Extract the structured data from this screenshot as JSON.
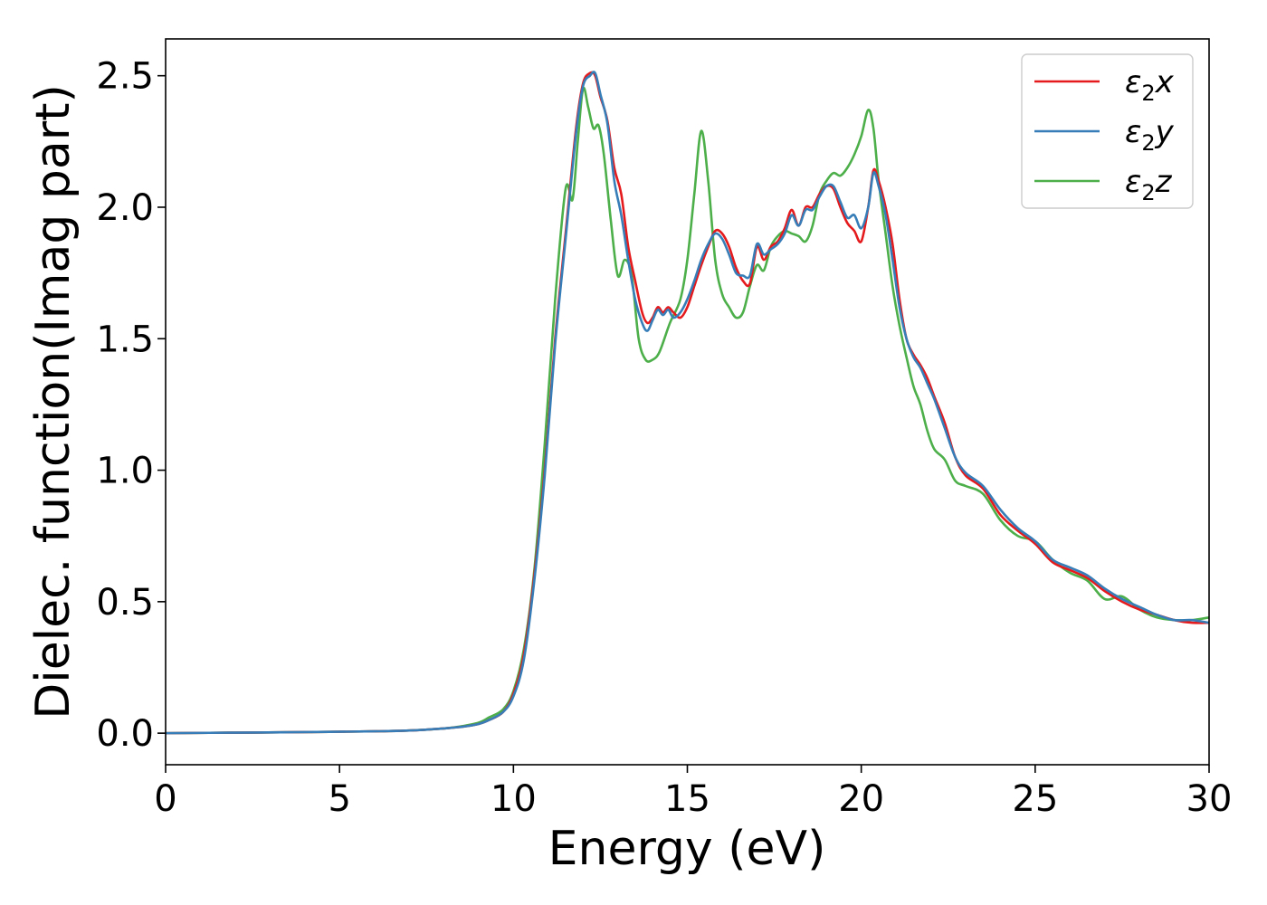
{
  "chart_data": {
    "type": "line",
    "xlabel": "Energy (eV)",
    "ylabel": "Dielec. function(Imag part)",
    "xlim": [
      0,
      30
    ],
    "ylim": [
      -0.12,
      2.64
    ],
    "xticks": [
      0,
      5,
      10,
      15,
      20,
      25,
      30
    ],
    "xtick_labels": [
      "0",
      "5",
      "10",
      "15",
      "20",
      "25",
      "30"
    ],
    "yticks": [
      0.0,
      0.5,
      1.0,
      1.5,
      2.0,
      2.5
    ],
    "ytick_labels": [
      "0.0",
      "0.5",
      "1.0",
      "1.5",
      "2.0",
      "2.5"
    ],
    "grid": false,
    "legend_position": "top-right",
    "series": [
      {
        "name": "ε2x",
        "legend": {
          "base": "ε",
          "sub": "2",
          "var": "x"
        },
        "color": "#e41a1c",
        "points": [
          [
            0,
            0
          ],
          [
            2,
            0.002
          ],
          [
            4,
            0.004
          ],
          [
            6,
            0.007
          ],
          [
            7,
            0.01
          ],
          [
            8,
            0.018
          ],
          [
            8.5,
            0.024
          ],
          [
            9,
            0.035
          ],
          [
            9.3,
            0.05
          ],
          [
            9.7,
            0.08
          ],
          [
            10,
            0.15
          ],
          [
            10.3,
            0.3
          ],
          [
            10.6,
            0.6
          ],
          [
            10.9,
            1.0
          ],
          [
            11.2,
            1.5
          ],
          [
            11.5,
            1.9
          ],
          [
            11.8,
            2.3
          ],
          [
            12.0,
            2.47
          ],
          [
            12.2,
            2.51
          ],
          [
            12.35,
            2.5
          ],
          [
            12.5,
            2.42
          ],
          [
            12.7,
            2.33
          ],
          [
            12.9,
            2.15
          ],
          [
            13.1,
            2.05
          ],
          [
            13.3,
            1.85
          ],
          [
            13.5,
            1.72
          ],
          [
            13.7,
            1.6
          ],
          [
            13.85,
            1.56
          ],
          [
            14,
            1.58
          ],
          [
            14.15,
            1.62
          ],
          [
            14.3,
            1.6
          ],
          [
            14.45,
            1.62
          ],
          [
            14.6,
            1.6
          ],
          [
            14.8,
            1.58
          ],
          [
            15.0,
            1.62
          ],
          [
            15.2,
            1.7
          ],
          [
            15.4,
            1.78
          ],
          [
            15.6,
            1.85
          ],
          [
            15.8,
            1.91
          ],
          [
            16.0,
            1.9
          ],
          [
            16.2,
            1.85
          ],
          [
            16.4,
            1.77
          ],
          [
            16.6,
            1.72
          ],
          [
            16.8,
            1.71
          ],
          [
            17.0,
            1.85
          ],
          [
            17.2,
            1.8
          ],
          [
            17.4,
            1.85
          ],
          [
            17.6,
            1.87
          ],
          [
            17.8,
            1.92
          ],
          [
            18.0,
            1.99
          ],
          [
            18.2,
            1.93
          ],
          [
            18.4,
            2.0
          ],
          [
            18.6,
            2.0
          ],
          [
            18.8,
            2.05
          ],
          [
            19.0,
            2.08
          ],
          [
            19.2,
            2.07
          ],
          [
            19.4,
            2.0
          ],
          [
            19.6,
            1.94
          ],
          [
            19.8,
            1.91
          ],
          [
            20.0,
            1.87
          ],
          [
            20.2,
            2.0
          ],
          [
            20.35,
            2.14
          ],
          [
            20.5,
            2.1
          ],
          [
            20.7,
            2.0
          ],
          [
            20.9,
            1.86
          ],
          [
            21.1,
            1.65
          ],
          [
            21.3,
            1.5
          ],
          [
            21.5,
            1.44
          ],
          [
            21.7,
            1.4
          ],
          [
            21.9,
            1.35
          ],
          [
            22.1,
            1.28
          ],
          [
            22.4,
            1.18
          ],
          [
            22.7,
            1.05
          ],
          [
            23.0,
            0.98
          ],
          [
            23.5,
            0.93
          ],
          [
            24.0,
            0.83
          ],
          [
            24.5,
            0.77
          ],
          [
            25.0,
            0.72
          ],
          [
            25.5,
            0.65
          ],
          [
            26.0,
            0.62
          ],
          [
            26.5,
            0.59
          ],
          [
            27.0,
            0.54
          ],
          [
            27.5,
            0.5
          ],
          [
            28.0,
            0.47
          ],
          [
            28.5,
            0.45
          ],
          [
            29.0,
            0.43
          ],
          [
            29.5,
            0.42
          ],
          [
            30,
            0.42
          ]
        ]
      },
      {
        "name": "ε2y",
        "legend": {
          "base": "ε",
          "sub": "2",
          "var": "y"
        },
        "color": "#377eb8",
        "points": [
          [
            0,
            0
          ],
          [
            2,
            0.002
          ],
          [
            4,
            0.004
          ],
          [
            6,
            0.007
          ],
          [
            7,
            0.01
          ],
          [
            8,
            0.018
          ],
          [
            8.5,
            0.024
          ],
          [
            9,
            0.035
          ],
          [
            9.3,
            0.05
          ],
          [
            9.7,
            0.08
          ],
          [
            10,
            0.14
          ],
          [
            10.3,
            0.28
          ],
          [
            10.6,
            0.58
          ],
          [
            10.9,
            0.98
          ],
          [
            11.2,
            1.48
          ],
          [
            11.5,
            1.88
          ],
          [
            11.8,
            2.28
          ],
          [
            12.0,
            2.46
          ],
          [
            12.2,
            2.5
          ],
          [
            12.35,
            2.51
          ],
          [
            12.5,
            2.43
          ],
          [
            12.7,
            2.32
          ],
          [
            12.9,
            2.1
          ],
          [
            13.1,
            1.97
          ],
          [
            13.3,
            1.8
          ],
          [
            13.5,
            1.65
          ],
          [
            13.7,
            1.56
          ],
          [
            13.85,
            1.53
          ],
          [
            14,
            1.57
          ],
          [
            14.15,
            1.61
          ],
          [
            14.3,
            1.59
          ],
          [
            14.45,
            1.61
          ],
          [
            14.6,
            1.58
          ],
          [
            14.8,
            1.6
          ],
          [
            15.0,
            1.65
          ],
          [
            15.2,
            1.72
          ],
          [
            15.4,
            1.8
          ],
          [
            15.6,
            1.86
          ],
          [
            15.8,
            1.9
          ],
          [
            16.0,
            1.88
          ],
          [
            16.2,
            1.82
          ],
          [
            16.4,
            1.75
          ],
          [
            16.6,
            1.74
          ],
          [
            16.8,
            1.74
          ],
          [
            17.0,
            1.86
          ],
          [
            17.2,
            1.82
          ],
          [
            17.4,
            1.84
          ],
          [
            17.6,
            1.86
          ],
          [
            17.8,
            1.9
          ],
          [
            18.0,
            1.97
          ],
          [
            18.2,
            1.93
          ],
          [
            18.4,
            1.99
          ],
          [
            18.6,
            1.99
          ],
          [
            18.8,
            2.04
          ],
          [
            19.0,
            2.08
          ],
          [
            19.2,
            2.08
          ],
          [
            19.4,
            2.02
          ],
          [
            19.6,
            1.96
          ],
          [
            19.8,
            1.97
          ],
          [
            20.0,
            1.92
          ],
          [
            20.2,
            2.0
          ],
          [
            20.35,
            2.13
          ],
          [
            20.5,
            2.08
          ],
          [
            20.7,
            1.97
          ],
          [
            20.9,
            1.8
          ],
          [
            21.1,
            1.62
          ],
          [
            21.3,
            1.5
          ],
          [
            21.5,
            1.43
          ],
          [
            21.7,
            1.39
          ],
          [
            21.9,
            1.33
          ],
          [
            22.1,
            1.27
          ],
          [
            22.4,
            1.16
          ],
          [
            22.7,
            1.05
          ],
          [
            23.0,
            0.99
          ],
          [
            23.5,
            0.94
          ],
          [
            24.0,
            0.85
          ],
          [
            24.5,
            0.78
          ],
          [
            25.0,
            0.73
          ],
          [
            25.5,
            0.66
          ],
          [
            26.0,
            0.63
          ],
          [
            26.5,
            0.6
          ],
          [
            27.0,
            0.55
          ],
          [
            27.5,
            0.51
          ],
          [
            28.0,
            0.48
          ],
          [
            28.5,
            0.45
          ],
          [
            29.0,
            0.43
          ],
          [
            29.5,
            0.43
          ],
          [
            30,
            0.42
          ]
        ]
      },
      {
        "name": "ε2z",
        "legend": {
          "base": "ε",
          "sub": "2",
          "var": "z"
        },
        "color": "#4daf4a",
        "points": [
          [
            0,
            0
          ],
          [
            2,
            0.002
          ],
          [
            4,
            0.004
          ],
          [
            6,
            0.007
          ],
          [
            7,
            0.01
          ],
          [
            8,
            0.018
          ],
          [
            8.5,
            0.026
          ],
          [
            9,
            0.04
          ],
          [
            9.3,
            0.06
          ],
          [
            9.7,
            0.09
          ],
          [
            10,
            0.16
          ],
          [
            10.3,
            0.32
          ],
          [
            10.6,
            0.62
          ],
          [
            10.9,
            1.1
          ],
          [
            11.2,
            1.65
          ],
          [
            11.5,
            2.07
          ],
          [
            11.7,
            2.03
          ],
          [
            11.85,
            2.25
          ],
          [
            12.0,
            2.45
          ],
          [
            12.15,
            2.38
          ],
          [
            12.3,
            2.3
          ],
          [
            12.45,
            2.31
          ],
          [
            12.6,
            2.2
          ],
          [
            12.8,
            1.95
          ],
          [
            13.0,
            1.74
          ],
          [
            13.2,
            1.8
          ],
          [
            13.4,
            1.74
          ],
          [
            13.6,
            1.5
          ],
          [
            13.8,
            1.42
          ],
          [
            14.0,
            1.42
          ],
          [
            14.2,
            1.45
          ],
          [
            14.5,
            1.56
          ],
          [
            14.8,
            1.65
          ],
          [
            15.0,
            1.8
          ],
          [
            15.2,
            2.05
          ],
          [
            15.4,
            2.29
          ],
          [
            15.6,
            2.1
          ],
          [
            15.8,
            1.8
          ],
          [
            16.0,
            1.67
          ],
          [
            16.2,
            1.62
          ],
          [
            16.4,
            1.58
          ],
          [
            16.6,
            1.6
          ],
          [
            16.8,
            1.7
          ],
          [
            17.0,
            1.78
          ],
          [
            17.2,
            1.76
          ],
          [
            17.4,
            1.85
          ],
          [
            17.6,
            1.89
          ],
          [
            17.8,
            1.91
          ],
          [
            18.0,
            1.9
          ],
          [
            18.2,
            1.89
          ],
          [
            18.4,
            1.87
          ],
          [
            18.6,
            1.93
          ],
          [
            18.8,
            2.05
          ],
          [
            19.0,
            2.1
          ],
          [
            19.2,
            2.13
          ],
          [
            19.4,
            2.12
          ],
          [
            19.6,
            2.15
          ],
          [
            19.8,
            2.2
          ],
          [
            20.0,
            2.27
          ],
          [
            20.2,
            2.37
          ],
          [
            20.35,
            2.3
          ],
          [
            20.5,
            2.1
          ],
          [
            20.7,
            1.9
          ],
          [
            20.9,
            1.7
          ],
          [
            21.1,
            1.55
          ],
          [
            21.3,
            1.43
          ],
          [
            21.5,
            1.32
          ],
          [
            21.7,
            1.25
          ],
          [
            21.9,
            1.15
          ],
          [
            22.1,
            1.08
          ],
          [
            22.4,
            1.04
          ],
          [
            22.7,
            0.96
          ],
          [
            23.0,
            0.94
          ],
          [
            23.5,
            0.91
          ],
          [
            24.0,
            0.81
          ],
          [
            24.5,
            0.75
          ],
          [
            25.0,
            0.73
          ],
          [
            25.5,
            0.66
          ],
          [
            26.0,
            0.61
          ],
          [
            26.5,
            0.58
          ],
          [
            27.0,
            0.51
          ],
          [
            27.5,
            0.52
          ],
          [
            28.0,
            0.47
          ],
          [
            28.5,
            0.44
          ],
          [
            29.0,
            0.43
          ],
          [
            29.5,
            0.43
          ],
          [
            30,
            0.44
          ]
        ]
      }
    ]
  }
}
